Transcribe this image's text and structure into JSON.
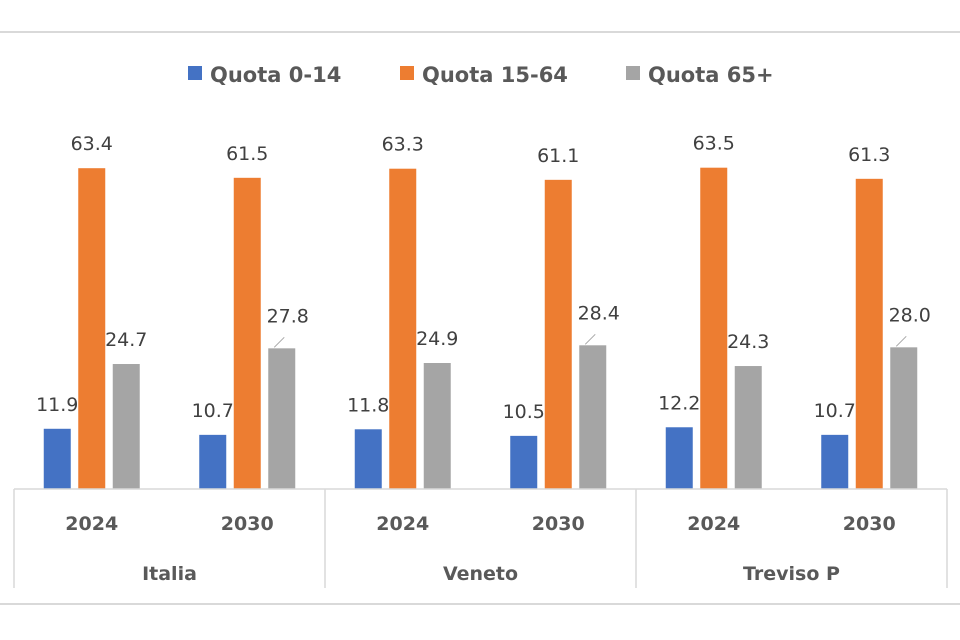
{
  "chart_data": {
    "type": "bar",
    "title": "",
    "xlabel": "",
    "ylabel": "",
    "ylim": [
      0,
      66
    ],
    "grid": false,
    "legend_position": "top",
    "groups": [
      "Italia",
      "Veneto",
      "Treviso P"
    ],
    "years": [
      "2024",
      "2030"
    ],
    "categories": [
      "Italia 2024",
      "Italia 2030",
      "Veneto 2024",
      "Veneto 2030",
      "Treviso P 2024",
      "Treviso P 2030"
    ],
    "series": [
      {
        "name": "Quota 0-14",
        "color": "#4472C4",
        "values": [
          11.9,
          10.7,
          11.8,
          10.5,
          12.2,
          10.7
        ]
      },
      {
        "name": "Quota 15-64",
        "color": "#ED7D31",
        "values": [
          63.4,
          61.5,
          63.3,
          61.1,
          63.5,
          61.3
        ]
      },
      {
        "name": "Quota 65+",
        "color": "#A5A5A5",
        "values": [
          24.7,
          27.8,
          24.9,
          28.4,
          24.3,
          28.0
        ]
      }
    ],
    "value_labels": [
      [
        "11.9",
        "10.7",
        "11.8",
        "10.5",
        "12.2",
        "10.7"
      ],
      [
        "63.4",
        "61.5",
        "63.3",
        "61.1",
        "63.5",
        "61.3"
      ],
      [
        "24.7",
        "27.8",
        "24.9",
        "28.4",
        "24.3",
        "28.0"
      ]
    ]
  }
}
